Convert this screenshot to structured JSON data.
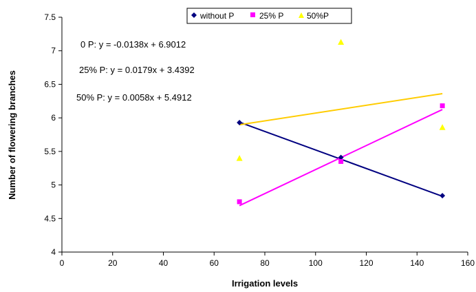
{
  "chart_data": {
    "type": "scatter",
    "xlabel": "Irrigation levels",
    "ylabel": "Number of flowering branches",
    "xlim": [
      0,
      160
    ],
    "ylim": [
      4,
      7.5
    ],
    "x_ticks": [
      0,
      20,
      40,
      60,
      80,
      100,
      120,
      140,
      160
    ],
    "y_ticks": [
      4,
      4.5,
      5,
      5.5,
      6,
      6.5,
      7,
      7.5
    ],
    "x_tick_labels": [
      "0",
      "20",
      "40",
      "60",
      "80",
      "100",
      "120",
      "140",
      "160"
    ],
    "y_tick_labels": [
      "4",
      "4.5",
      "5",
      "5.5",
      "6",
      "6.5",
      "7",
      "7.5"
    ],
    "grid": false,
    "legend_position": "top",
    "series": [
      {
        "name": "without P",
        "marker": "diamond",
        "color": "#000080",
        "trend_color": "#000080",
        "x": [
          70,
          110,
          150
        ],
        "y": [
          5.93,
          5.41,
          4.84
        ],
        "trendline": {
          "slope": -0.0138,
          "intercept": 6.9012,
          "equation": "0 P: y = -0.0138x + 6.9012"
        }
      },
      {
        "name": "25% P",
        "marker": "square",
        "color": "#FF00FF",
        "trend_color": "#FF00FF",
        "x": [
          70,
          110,
          150
        ],
        "y": [
          4.75,
          5.35,
          6.18
        ],
        "trendline": {
          "slope": 0.0179,
          "intercept": 3.4392,
          "equation": "25% P: y = 0.0179x + 3.4392"
        }
      },
      {
        "name": "50%P",
        "marker": "triangle",
        "color": "#FFFF00",
        "trend_color": "#FFCC00",
        "x": [
          70,
          110,
          150
        ],
        "y": [
          5.4,
          7.13,
          5.86
        ],
        "trendline": {
          "slope": 0.0058,
          "intercept": 5.4912,
          "equation": "50% P: y = 0.0058x + 5.4912"
        }
      }
    ],
    "trendline_x_range": [
      70,
      150
    ],
    "equations": [
      "0 P: y = -0.0138x + 6.9012",
      "25% P: y = 0.0179x + 3.4392",
      "50% P: y = 0.0058x + 5.4912"
    ]
  }
}
